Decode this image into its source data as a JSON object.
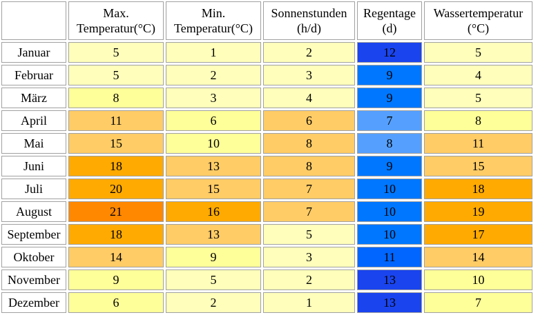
{
  "headers": {
    "max_temp": [
      "Max.",
      "Temperatur(°C)"
    ],
    "min_temp": [
      "Min.",
      "Temperatur(°C)"
    ],
    "sun_hours": [
      "Sonnenstunden",
      "(h/d)"
    ],
    "rain_days": [
      "Regentage",
      "(d)"
    ],
    "water_temp": [
      "Wassertemperatur",
      "(°C)"
    ]
  },
  "rows": [
    {
      "month": "Januar",
      "max": "5",
      "min": "1",
      "sun": "2",
      "rain": "12",
      "water": "5"
    },
    {
      "month": "Februar",
      "max": "5",
      "min": "2",
      "sun": "3",
      "rain": "9",
      "water": "4"
    },
    {
      "month": "März",
      "max": "8",
      "min": "3",
      "sun": "4",
      "rain": "9",
      "water": "5"
    },
    {
      "month": "April",
      "max": "11",
      "min": "6",
      "sun": "6",
      "rain": "7",
      "water": "8"
    },
    {
      "month": "Mai",
      "max": "15",
      "min": "10",
      "sun": "8",
      "rain": "8",
      "water": "11"
    },
    {
      "month": "Juni",
      "max": "18",
      "min": "13",
      "sun": "8",
      "rain": "9",
      "water": "15"
    },
    {
      "month": "Juli",
      "max": "20",
      "min": "15",
      "sun": "7",
      "rain": "10",
      "water": "18"
    },
    {
      "month": "August",
      "max": "21",
      "min": "16",
      "sun": "7",
      "rain": "10",
      "water": "19"
    },
    {
      "month": "September",
      "max": "18",
      "min": "13",
      "sun": "5",
      "rain": "10",
      "water": "17"
    },
    {
      "month": "Oktober",
      "max": "14",
      "min": "9",
      "sun": "3",
      "rain": "11",
      "water": "14"
    },
    {
      "month": "November",
      "max": "9",
      "min": "5",
      "sun": "2",
      "rain": "13",
      "water": "10"
    },
    {
      "month": "Dezember",
      "max": "6",
      "min": "2",
      "sun": "1",
      "rain": "13",
      "water": "7"
    }
  ],
  "colors": {
    "max": [
      "#ffffbb",
      "#ffffbb",
      "#ffff99",
      "#ffcc66",
      "#ffcc66",
      "#ffaa00",
      "#ffaa00",
      "#ff8800",
      "#ffaa00",
      "#ffcc66",
      "#ffff99",
      "#ffff99"
    ],
    "min": [
      "#ffffbb",
      "#ffffbb",
      "#ffffbb",
      "#ffff99",
      "#ffff99",
      "#ffcc66",
      "#ffcc66",
      "#ffaa00",
      "#ffcc66",
      "#ffff99",
      "#ffffbb",
      "#ffffbb"
    ],
    "sun": [
      "#ffffbb",
      "#ffffbb",
      "#ffffbb",
      "#ffcc66",
      "#ffcc66",
      "#ffcc66",
      "#ffcc66",
      "#ffcc66",
      "#ffffbb",
      "#ffffbb",
      "#ffffbb",
      "#ffffbb"
    ],
    "rain": [
      "#1a44ee",
      "#0077ff",
      "#0077ff",
      "#55a0ff",
      "#55a0ff",
      "#0077ff",
      "#0077ff",
      "#0077ff",
      "#0077ff",
      "#0066ff",
      "#1a44ee",
      "#1a44ee"
    ],
    "water": [
      "#ffffbb",
      "#ffffbb",
      "#ffffbb",
      "#ffff99",
      "#ffcc66",
      "#ffcc66",
      "#ffaa00",
      "#ffaa00",
      "#ffaa00",
      "#ffcc66",
      "#ffff99",
      "#ffff99"
    ]
  }
}
